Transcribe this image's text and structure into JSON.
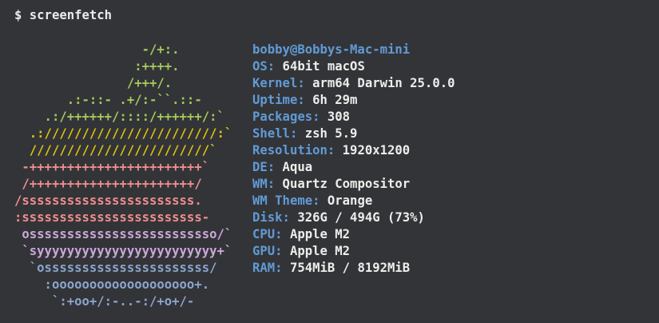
{
  "terminal": {
    "background": "#333438",
    "prompt": {
      "symbol": "$",
      "command": "screenfetch",
      "color": "#ebebeb"
    }
  },
  "ascii_art": {
    "name": "apple-logo",
    "colors": {
      "green": "#a3c95b",
      "yellow": "#ddc30e",
      "red": "#ef8e8e",
      "purple": "#cba8d9",
      "blue": "#8ba5cd"
    },
    "lines": [
      {
        "text": "                 -/+:.",
        "color": "green"
      },
      {
        "text": "                :++++.",
        "color": "green"
      },
      {
        "text": "               /+++/.",
        "color": "green"
      },
      {
        "text": "       .:-::- .+/:-``.::-",
        "color": "green"
      },
      {
        "text": "    .:/++++++/::::/++++++/:`",
        "color": "green"
      },
      {
        "text": "  .:///////////////////////:`",
        "color": "yellow"
      },
      {
        "text": "  ////////////////////////`",
        "color": "yellow"
      },
      {
        "text": " -+++++++++++++++++++++++`",
        "color": "red"
      },
      {
        "text": " /++++++++++++++++++++++/",
        "color": "red"
      },
      {
        "text": "/sssssssssssssssssssssss.",
        "color": "red"
      },
      {
        "text": ":ssssssssssssssssssssssss-",
        "color": "red"
      },
      {
        "text": " osssssssssssssssssssssssso/`",
        "color": "purple"
      },
      {
        "text": " `syyyyyyyyyyyyyyyyyyyyyyyy+`",
        "color": "purple"
      },
      {
        "text": "  `ossssssssssssssssssssss/",
        "color": "blue"
      },
      {
        "text": "    :ooooooooooooooooooo+.",
        "color": "blue"
      },
      {
        "text": "     `:+oo+/:-..-:/+o+/-",
        "color": "blue"
      }
    ]
  },
  "system_info": {
    "title": "bobby@Bobbys-Mac-mini",
    "label_color": "#619bd5",
    "value_color": "#ededeb",
    "entries": [
      {
        "label": "OS",
        "value": "64bit macOS"
      },
      {
        "label": "Kernel",
        "value": "arm64 Darwin 25.0.0"
      },
      {
        "label": "Uptime",
        "value": "6h 29m"
      },
      {
        "label": "Packages",
        "value": "308"
      },
      {
        "label": "Shell",
        "value": "zsh 5.9"
      },
      {
        "label": "Resolution",
        "value": "1920x1200"
      },
      {
        "label": "DE",
        "value": "Aqua"
      },
      {
        "label": "WM",
        "value": "Quartz Compositor"
      },
      {
        "label": "WM Theme",
        "value": "Orange"
      },
      {
        "label": "Disk",
        "value": "326G / 494G (73%)"
      },
      {
        "label": "CPU",
        "value": "Apple M2"
      },
      {
        "label": "GPU",
        "value": "Apple M2"
      },
      {
        "label": "RAM",
        "value": "754MiB / 8192MiB"
      }
    ]
  }
}
